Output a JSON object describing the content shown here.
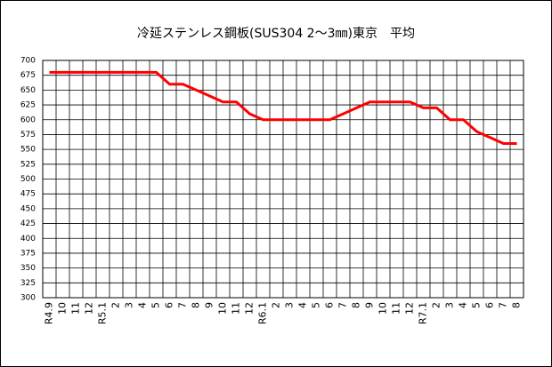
{
  "chart_data": {
    "type": "line",
    "title": "冷延ステンレス鋼板(SUS304 2～3㎜)東京　平均",
    "categories": [
      "R4.9",
      "10",
      "11",
      "12",
      "R5.1",
      "2",
      "3",
      "4",
      "5",
      "6",
      "7",
      "8",
      "9",
      "10",
      "11",
      "12",
      "R6.1",
      "2",
      "3",
      "4",
      "5",
      "6",
      "7",
      "8",
      "9",
      "10",
      "11",
      "12",
      "R7.1",
      "2",
      "3",
      "4",
      "5",
      "6",
      "7",
      "8"
    ],
    "series": [
      {
        "name": "平均",
        "color": "#ff0000",
        "values": [
          680,
          680,
          680,
          680,
          680,
          680,
          680,
          680,
          680,
          660,
          660,
          650,
          640,
          630,
          630,
          610,
          600,
          600,
          600,
          600,
          600,
          600,
          610,
          620,
          630,
          630,
          630,
          630,
          620,
          620,
          600,
          600,
          580,
          570,
          560,
          560
        ]
      }
    ],
    "ylim": [
      300,
      700
    ],
    "yticks": [
      300,
      325,
      350,
      375,
      400,
      425,
      450,
      475,
      500,
      525,
      550,
      575,
      600,
      625,
      650,
      675,
      700
    ],
    "grid": true
  }
}
